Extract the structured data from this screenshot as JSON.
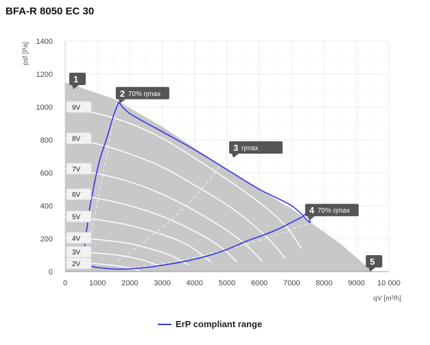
{
  "chart_data": {
    "type": "line",
    "title": "BFA-R 8050 EC 30",
    "xlabel": "qV [m³/h]",
    "ylabel": "psf [Pa]",
    "xlim": [
      0,
      10000
    ],
    "ylim": [
      0,
      1400
    ],
    "x_ticks": [
      "0",
      "1000",
      "2000",
      "3000",
      "4000",
      "5000",
      "6000",
      "7000",
      "8000",
      "9000",
      "10 000"
    ],
    "y_ticks": [
      "0",
      "200",
      "400",
      "600",
      "800",
      "1000",
      "1200",
      "1400"
    ],
    "grid": true,
    "legend": {
      "position": "bottom-center",
      "entries": [
        "ErP compliant range"
      ]
    },
    "colors": {
      "envelope": "#c8c8c8",
      "curve": "#ffffff",
      "erp": "#3333ee",
      "marker": "#555555",
      "grid": "#d8d8d8"
    },
    "envelope": [
      {
        "x": 0,
        "y": 1150
      },
      {
        "x": 1500,
        "y": 1050
      },
      {
        "x": 3000,
        "y": 880
      },
      {
        "x": 5000,
        "y": 620
      },
      {
        "x": 7000,
        "y": 380
      },
      {
        "x": 8500,
        "y": 170
      },
      {
        "x": 9500,
        "y": 0
      },
      {
        "x": 1600,
        "y": 0
      },
      {
        "x": 0,
        "y": 0
      }
    ],
    "series": [
      {
        "name": "9V",
        "label_y": 1000,
        "x": [
          0,
          1000,
          2000,
          3000,
          4000,
          5000,
          6000,
          6800,
          7300
        ],
        "y": [
          995,
          960,
          900,
          810,
          690,
          560,
          420,
          280,
          140
        ]
      },
      {
        "name": "8V",
        "label_y": 810,
        "x": [
          0,
          1000,
          2000,
          3000,
          4000,
          5000,
          5800,
          6400,
          6800
        ],
        "y": [
          810,
          775,
          715,
          635,
          525,
          405,
          285,
          175,
          80
        ]
      },
      {
        "name": "7V",
        "label_y": 625,
        "x": [
          0,
          1000,
          2000,
          3000,
          4000,
          5000,
          5600,
          6100
        ],
        "y": [
          625,
          595,
          545,
          470,
          370,
          250,
          160,
          60
        ]
      },
      {
        "name": "6V",
        "label_y": 470,
        "x": [
          0,
          1000,
          2000,
          3000,
          4000,
          4800,
          5300
        ],
        "y": [
          470,
          445,
          400,
          335,
          245,
          150,
          60
        ]
      },
      {
        "name": "5V",
        "label_y": 335,
        "x": [
          0,
          1000,
          2000,
          3000,
          3800,
          4500
        ],
        "y": [
          335,
          315,
          280,
          225,
          160,
          60
        ]
      },
      {
        "name": "4V",
        "label_y": 205,
        "x": [
          0,
          1000,
          2000,
          2700,
          3300,
          3800
        ],
        "y": [
          205,
          195,
          170,
          135,
          95,
          40
        ]
      },
      {
        "name": "3V",
        "label_y": 120,
        "x": [
          0,
          1000,
          1800,
          2400,
          2900
        ],
        "y": [
          120,
          112,
          95,
          70,
          35
        ]
      },
      {
        "name": "2V",
        "label_y": 50,
        "x": [
          0,
          800,
          1400,
          1900,
          2300
        ],
        "y": [
          55,
          50,
          40,
          25,
          5
        ]
      }
    ],
    "efficiency_lines": [
      {
        "x": [
          1600,
          1300,
          1000,
          780
        ],
        "y": [
          1030,
          720,
          420,
          210
        ]
      },
      {
        "x": [
          5200,
          4300,
          3300,
          2300,
          1600
        ],
        "y": [
          760,
          520,
          320,
          160,
          60
        ]
      },
      {
        "x": [
          7500,
          6000,
          4600,
          3200,
          2000
        ],
        "y": [
          290,
          190,
          115,
          55,
          20
        ]
      }
    ],
    "erp_boundary": {
      "x": [
        1650,
        1500,
        1300,
        1100,
        960,
        850,
        760,
        700,
        640,
        600,
        560,
        540,
        700,
        1000,
        1700,
        2500,
        3500,
        4300,
        5000,
        5600,
        6100,
        6600,
        7000,
        7300,
        7450,
        7550,
        7000,
        6000,
        5000,
        4000,
        3000,
        2000,
        1650
      ],
      "y": [
        1030,
        950,
        820,
        700,
        590,
        480,
        390,
        300,
        220,
        150,
        90,
        60,
        40,
        25,
        15,
        25,
        55,
        90,
        135,
        185,
        220,
        260,
        300,
        330,
        350,
        300,
        400,
        500,
        620,
        740,
        850,
        960,
        1030
      ]
    },
    "points": [
      {
        "label": "1",
        "text": "",
        "x": 0,
        "y": 1150
      },
      {
        "label": "2",
        "text": "70% ηmax",
        "x": 1650,
        "y": 1030
      },
      {
        "label": "3",
        "text": "ηmax",
        "x": 5150,
        "y": 700
      },
      {
        "label": "4",
        "text": "70% ηmax",
        "x": 7500,
        "y": 320
      },
      {
        "label": "5",
        "text": "",
        "x": 9500,
        "y": 0
      }
    ],
    "erp_label": "ErP compliant range"
  }
}
